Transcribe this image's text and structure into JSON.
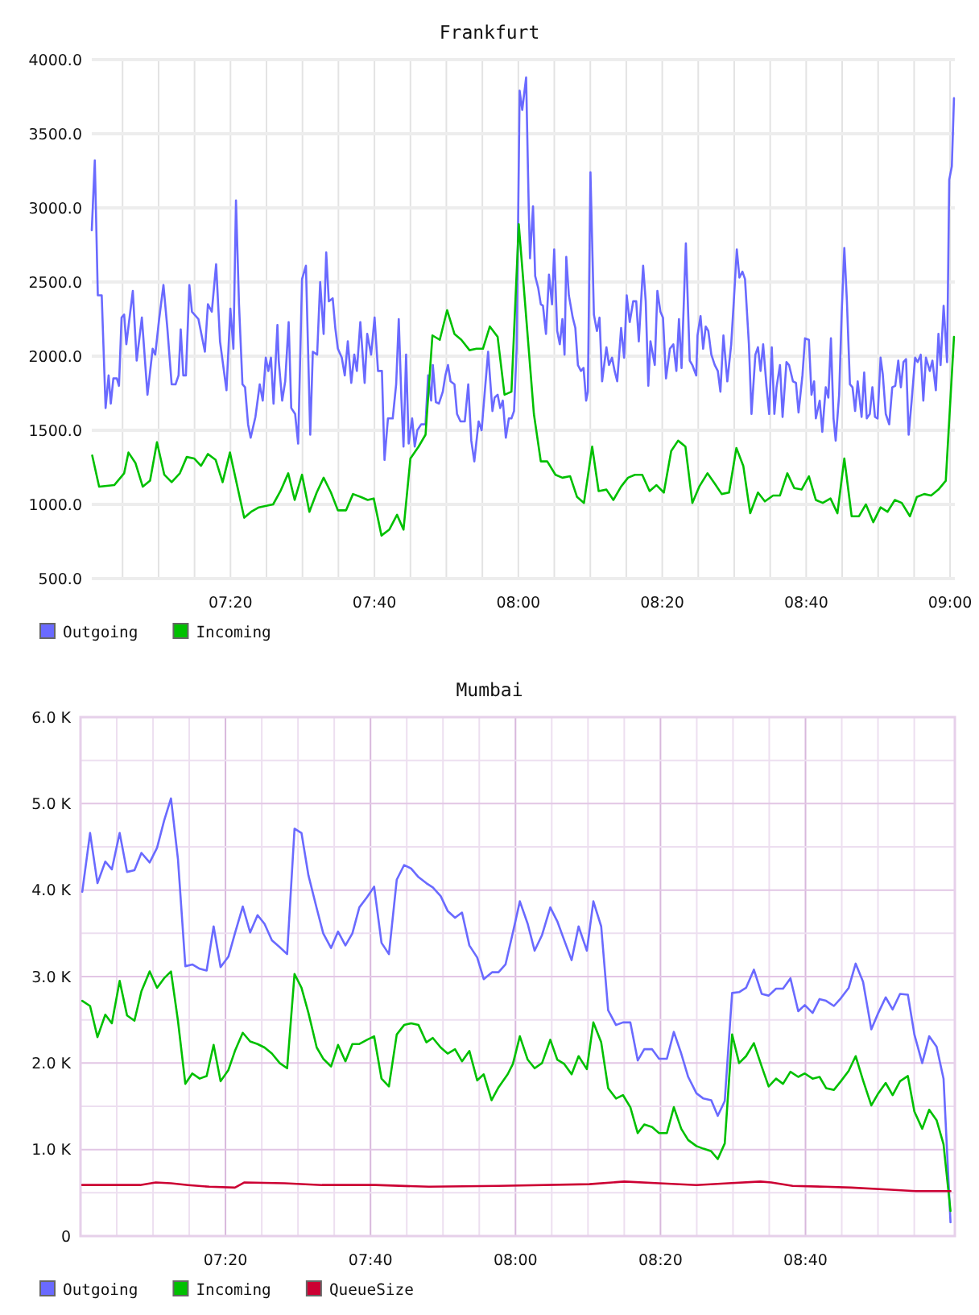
{
  "chart_data": [
    {
      "type": "line",
      "title": "Frankfurt",
      "xlim": [
        7.012,
        9.011
      ],
      "ylim": [
        500,
        4000
      ],
      "xticks": [
        {
          "value": 7.0833,
          "label": null
        },
        {
          "value": 7.1667,
          "label": null
        },
        {
          "value": 7.25,
          "label": null
        },
        {
          "value": 7.3333,
          "label": "07:20"
        },
        {
          "value": 7.4167,
          "label": null
        },
        {
          "value": 7.5,
          "label": null
        },
        {
          "value": 7.5833,
          "label": null
        },
        {
          "value": 7.6667,
          "label": "07:40"
        },
        {
          "value": 7.75,
          "label": null
        },
        {
          "value": 7.8333,
          "label": null
        },
        {
          "value": 7.9167,
          "label": null
        },
        {
          "value": 8,
          "label": "08:00"
        },
        {
          "value": 8.0833,
          "label": null
        },
        {
          "value": 8.1667,
          "label": null
        },
        {
          "value": 8.25,
          "label": null
        },
        {
          "value": 8.3333,
          "label": "08:20"
        },
        {
          "value": 8.4167,
          "label": null
        },
        {
          "value": 8.5,
          "label": null
        },
        {
          "value": 8.5833,
          "label": null
        },
        {
          "value": 8.6667,
          "label": "08:40"
        },
        {
          "value": 8.75,
          "label": null
        },
        {
          "value": 8.8333,
          "label": null
        },
        {
          "value": 8.9167,
          "label": null
        },
        {
          "value": 9,
          "label": "09:00"
        }
      ],
      "yticks": [
        {
          "value": 500,
          "label": "500.0"
        },
        {
          "value": 1000,
          "label": "1000.0"
        },
        {
          "value": 1500,
          "label": "1500.0"
        },
        {
          "value": 2000,
          "label": "2000.0"
        },
        {
          "value": 2500,
          "label": "2500.0"
        },
        {
          "value": 3000,
          "label": "3000.0"
        },
        {
          "value": 3500,
          "label": "3500.0"
        },
        {
          "value": 4000,
          "label": "4000.0"
        }
      ],
      "grid": true,
      "legend": "bottom left",
      "series": [
        {
          "name": "Outgoing",
          "color": "#6a6aff",
          "x": [
            7.012,
            7.019,
            7.026,
            7.035,
            7.044,
            7.051,
            7.056,
            7.062,
            7.07,
            7.075,
            7.081,
            7.087,
            7.092,
            7.107,
            7.116,
            7.128,
            7.141,
            7.153,
            7.159,
            7.168,
            7.178,
            7.187,
            7.197,
            7.206,
            7.213,
            7.218,
            7.224,
            7.23,
            7.238,
            7.244,
            7.259,
            7.274,
            7.281,
            7.29,
            7.3,
            7.309,
            7.324,
            7.333,
            7.34,
            7.346,
            7.353,
            7.361,
            7.367,
            7.374,
            7.38,
            7.391,
            7.401,
            7.408,
            7.415,
            7.421,
            7.427,
            7.433,
            7.442,
            7.445,
            7.453,
            7.46,
            7.468,
            7.474,
            7.483,
            7.49,
            7.499,
            7.508,
            7.518,
            7.524,
            7.534,
            7.541,
            7.549,
            7.555,
            7.561,
            7.57,
            7.576,
            7.582,
            7.591,
            7.598,
            7.605,
            7.613,
            7.62,
            7.626,
            7.634,
            7.644,
            7.65,
            7.659,
            7.667,
            7.675,
            7.684,
            7.69,
            7.698,
            7.709,
            7.717,
            7.723,
            7.729,
            7.734,
            7.74,
            7.746,
            7.754,
            7.76,
            7.766,
            7.775,
            7.785,
            7.791,
            7.798,
            7.802,
            7.809,
            7.816,
            7.825,
            7.831,
            7.837,
            7.843,
            7.852,
            7.858,
            7.866,
            7.876,
            7.884,
            7.891,
            7.898,
            7.908,
            7.915,
            7.918,
            7.93,
            7.94,
            7.945,
            7.952,
            7.958,
            7.964,
            7.971,
            7.978,
            7.984,
            7.99,
            7.996,
            8.003,
            8.009,
            8.018,
            8.024,
            8.027,
            8.034,
            8.039,
            8.046,
            8.052,
            8.057,
            8.064,
            8.071,
            8.078,
            8.083,
            8.09,
            8.096,
            8.102,
            8.107,
            8.111,
            8.117,
            8.126,
            8.132,
            8.138,
            8.145,
            8.151,
            8.157,
            8.161,
            8.167,
            8.175,
            8.182,
            8.188,
            8.194,
            8.204,
            8.21,
            8.217,
            8.223,
            8.229,
            8.238,
            8.245,
            8.251,
            8.258,
            8.266,
            8.273,
            8.279,
            8.289,
            8.295,
            8.301,
            8.306,
            8.316,
            8.322,
            8.329,
            8.335,
            8.342,
            8.351,
            8.359,
            8.366,
            8.372,
            8.378,
            8.388,
            8.397,
            8.403,
            8.412,
            8.415,
            8.422,
            8.428,
            8.434,
            8.44,
            8.447,
            8.455,
            8.462,
            8.468,
            8.475,
            8.484,
            8.493,
            8.499,
            8.506,
            8.512,
            8.519,
            8.525,
            8.534,
            8.54,
            8.549,
            8.555,
            8.561,
            8.567,
            8.575,
            8.581,
            8.587,
            8.593,
            8.598,
            8.606,
            8.612,
            8.621,
            8.627,
            8.636,
            8.643,
            8.649,
            8.658,
            8.664,
            8.673,
            8.679,
            8.685,
            8.689,
            8.698,
            8.704,
            8.712,
            8.718,
            8.724,
            8.73,
            8.735,
            8.743,
            8.749,
            8.755,
            8.761,
            8.768,
            8.774,
            8.78,
            8.786,
            8.795,
            8.801,
            8.807,
            8.814,
            8.82,
            8.826,
            8.832,
            8.839,
            8.844,
            8.851,
            8.859,
            8.866,
            8.873,
            8.88,
            8.886,
            8.892,
            8.898,
            8.904,
            8.911,
            8.919,
            8.925,
            8.932,
            8.938,
            8.944,
            8.953,
            8.959,
            8.967,
            8.973,
            8.978,
            8.985,
            8.993,
            8.998,
            9.004,
            9.009
          ],
          "values": [
            2850,
            3320,
            2410,
            2410,
            1650,
            1870,
            1680,
            1850,
            1850,
            1800,
            2260,
            2280,
            2080,
            2440,
            1970,
            2260,
            1740,
            2050,
            2010,
            2250,
            2480,
            2190,
            1810,
            1810,
            1870,
            2180,
            1870,
            1870,
            2480,
            2300,
            2250,
            2030,
            2350,
            2300,
            2620,
            2100,
            1770,
            2320,
            2050,
            3050,
            2350,
            1810,
            1790,
            1540,
            1450,
            1590,
            1810,
            1700,
            1990,
            1900,
            1990,
            1680,
            2210,
            1970,
            1700,
            1830,
            2230,
            1650,
            1610,
            1410,
            2520,
            2610,
            1470,
            2030,
            2010,
            2500,
            2150,
            2700,
            2370,
            2390,
            2190,
            2050,
            1990,
            1870,
            2100,
            1820,
            2010,
            1900,
            2230,
            1820,
            2150,
            2010,
            2260,
            1900,
            1900,
            1300,
            1580,
            1580,
            1810,
            2250,
            1720,
            1390,
            2010,
            1410,
            1580,
            1390,
            1500,
            1540,
            1540,
            1870,
            1700,
            1940,
            1690,
            1680,
            1760,
            1870,
            1940,
            1830,
            1810,
            1610,
            1560,
            1560,
            1810,
            1430,
            1290,
            1560,
            1500,
            1610,
            2030,
            1630,
            1720,
            1740,
            1650,
            1700,
            1450,
            1580,
            1580,
            1630,
            2050,
            3790,
            3660,
            3880,
            3010,
            2660,
            3010,
            2540,
            2460,
            2350,
            2340,
            2150,
            2550,
            2350,
            2720,
            2170,
            2080,
            2250,
            2010,
            2670,
            2410,
            2260,
            2190,
            1940,
            1900,
            1920,
            1700,
            1760,
            3240,
            2280,
            2170,
            2260,
            1830,
            2060,
            1940,
            1990,
            1900,
            1830,
            2190,
            1990,
            2410,
            2230,
            2370,
            2370,
            2100,
            2610,
            2370,
            1800,
            2100,
            1940,
            2440,
            2300,
            2260,
            1850,
            2050,
            2080,
            1900,
            2250,
            1920,
            2760,
            1970,
            1940,
            1870,
            2140,
            2270,
            2050,
            2200,
            2170,
            2010,
            1940,
            1900,
            1760,
            2140,
            1830,
            2080,
            2370,
            2720,
            2530,
            2570,
            2520,
            2080,
            1610,
            2010,
            2060,
            1900,
            2080,
            1790,
            1610,
            2060,
            1610,
            1790,
            1940,
            1590,
            1960,
            1940,
            1830,
            1820,
            1620,
            1870,
            2120,
            2110,
            1740,
            1830,
            1580,
            1700,
            1490,
            1790,
            1720,
            2120,
            1580,
            1430,
            1740,
            2300,
            2730,
            2370,
            1810,
            1790,
            1630,
            1830,
            1590,
            1890,
            1580,
            1610,
            1790,
            1590,
            1580,
            1990,
            1880,
            1610,
            1540,
            1790,
            1800,
            1970,
            1790,
            1960,
            1980,
            1470,
            1700,
            1990,
            1960,
            2010,
            1700,
            1990,
            1900,
            1970,
            1770,
            2150,
            1940,
            2340,
            1960,
            3190,
            3280,
            3740
          ]
        },
        {
          "name": "Incoming",
          "color": "#00c000",
          "x": [
            7.013,
            7.029,
            7.064,
            7.087,
            7.097,
            7.113,
            7.13,
            7.147,
            7.163,
            7.18,
            7.197,
            7.216,
            7.232,
            7.249,
            7.265,
            7.281,
            7.299,
            7.315,
            7.332,
            7.365,
            7.381,
            7.399,
            7.416,
            7.432,
            7.449,
            7.467,
            7.482,
            7.499,
            7.516,
            7.533,
            7.549,
            7.566,
            7.582,
            7.601,
            7.617,
            7.635,
            7.651,
            7.665,
            7.683,
            7.701,
            7.719,
            7.734,
            7.75,
            7.769,
            7.785,
            7.801,
            7.818,
            7.835,
            7.852,
            7.868,
            7.887,
            7.903,
            7.918,
            7.934,
            7.952,
            7.968,
            7.984,
            8.001,
            8.036,
            8.052,
            8.067,
            8.086,
            8.102,
            8.12,
            8.136,
            8.152,
            8.171,
            8.186,
            8.204,
            8.22,
            8.238,
            8.254,
            8.27,
            8.287,
            8.304,
            8.32,
            8.337,
            8.354,
            8.37,
            8.387,
            8.403,
            8.419,
            8.438,
            8.455,
            8.471,
            8.488,
            8.505,
            8.521,
            8.537,
            8.555,
            8.571,
            8.59,
            8.606,
            8.623,
            8.639,
            8.656,
            8.673,
            8.689,
            8.705,
            8.723,
            8.739,
            8.755,
            8.772,
            8.789,
            8.805,
            8.822,
            8.839,
            8.855,
            8.872,
            8.888,
            8.907,
            8.923,
            8.94,
            8.956,
            8.973,
            8.99,
            9.009
          ],
          "values": [
            1330,
            1120,
            1130,
            1210,
            1350,
            1280,
            1120,
            1160,
            1420,
            1200,
            1150,
            1210,
            1320,
            1310,
            1260,
            1340,
            1300,
            1150,
            1350,
            910,
            950,
            980,
            990,
            1000,
            1090,
            1210,
            1030,
            1200,
            950,
            1080,
            1180,
            1080,
            960,
            960,
            1070,
            1050,
            1030,
            1040,
            790,
            830,
            930,
            830,
            1310,
            1390,
            1470,
            2140,
            2110,
            2310,
            2150,
            2110,
            2040,
            2050,
            2050,
            2200,
            2130,
            1740,
            1760,
            2890,
            1610,
            1290,
            1290,
            1200,
            1180,
            1190,
            1050,
            1010,
            1390,
            1090,
            1100,
            1030,
            1120,
            1180,
            1200,
            1200,
            1090,
            1130,
            1080,
            1360,
            1430,
            1390,
            1010,
            1120,
            1210,
            1140,
            1070,
            1080,
            1380,
            1260,
            940,
            1080,
            1020,
            1060,
            1060,
            1210,
            1110,
            1100,
            1190,
            1030,
            1010,
            1040,
            940,
            1310,
            920,
            920,
            1000,
            880,
            980,
            950,
            1030,
            1010,
            920,
            1050,
            1070,
            1060,
            1100,
            1160,
            2130
          ]
        }
      ]
    },
    {
      "type": "line",
      "title": "Mumbai",
      "xlim": [
        7,
        9.01
      ],
      "ylim": [
        0,
        6000
      ],
      "xticks": [
        {
          "value": 7.0833,
          "label": null
        },
        {
          "value": 7.1667,
          "label": null
        },
        {
          "value": 7.25,
          "label": null
        },
        {
          "value": 7.3333,
          "label": "07:20"
        },
        {
          "value": 7.4167,
          "label": null
        },
        {
          "value": 7.5,
          "label": null
        },
        {
          "value": 7.5833,
          "label": null
        },
        {
          "value": 7.6667,
          "label": "07:40"
        },
        {
          "value": 7.75,
          "label": null
        },
        {
          "value": 7.8333,
          "label": null
        },
        {
          "value": 7.9167,
          "label": null
        },
        {
          "value": 8,
          "label": "08:00"
        },
        {
          "value": 8.0833,
          "label": null
        },
        {
          "value": 8.1667,
          "label": null
        },
        {
          "value": 8.25,
          "label": null
        },
        {
          "value": 8.3333,
          "label": "08:20"
        },
        {
          "value": 8.4167,
          "label": null
        },
        {
          "value": 8.5,
          "label": null
        },
        {
          "value": 8.5833,
          "label": null
        },
        {
          "value": 8.6667,
          "label": "08:40"
        },
        {
          "value": 8.75,
          "label": null
        },
        {
          "value": 8.8333,
          "label": null
        },
        {
          "value": 8.9167,
          "label": null
        }
      ],
      "yticks": [
        0,
        {
          "value": 500,
          "label": null
        },
        {
          "value": 1000,
          "label": "1.0 K"
        },
        {
          "value": 1500,
          "label": null
        },
        {
          "value": 2000,
          "label": "2.0 K"
        },
        {
          "value": 2500,
          "label": null
        },
        {
          "value": 3000,
          "label": "3.0 K"
        },
        {
          "value": 3500,
          "label": null
        },
        {
          "value": 4000,
          "label": "4.0 K"
        },
        {
          "value": 4500,
          "label": null
        },
        {
          "value": 5000,
          "label": "5.0 K"
        },
        {
          "value": 5500,
          "label": null
        },
        {
          "value": 6000,
          "label": "6.0 K"
        }
      ],
      "grid": true,
      "legend": "bottom left",
      "series": [
        {
          "name": "Outgoing",
          "color": "#6a6aff",
          "x": [
            7.004,
            7.022,
            7.039,
            7.057,
            7.072,
            7.09,
            7.107,
            7.124,
            7.14,
            7.159,
            7.176,
            7.192,
            7.208,
            7.224,
            7.241,
            7.257,
            7.274,
            7.29,
            7.306,
            7.322,
            7.34,
            7.355,
            7.373,
            7.39,
            7.407,
            7.423,
            7.44,
            7.458,
            7.475,
            7.492,
            7.508,
            7.524,
            7.543,
            7.558,
            7.576,
            7.592,
            7.609,
            7.625,
            7.641,
            7.659,
            7.675,
            7.692,
            7.709,
            7.727,
            7.744,
            7.76,
            7.777,
            7.795,
            7.81,
            7.828,
            7.844,
            7.861,
            7.877,
            7.894,
            7.912,
            7.927,
            7.946,
            7.961,
            7.977,
            7.994,
            8.01,
            8.028,
            8.044,
            8.061,
            8.08,
            8.096,
            8.112,
            8.129,
            8.145,
            8.164,
            8.179,
            8.197,
            8.213,
            8.231,
            8.247,
            8.264,
            8.281,
            8.296,
            8.314,
            8.33,
            8.348,
            8.364,
            8.381,
            8.397,
            8.416,
            8.432,
            8.45,
            8.465,
            8.481,
            8.498,
            8.514,
            8.53,
            8.548,
            8.566,
            8.582,
            8.599,
            8.615,
            8.632,
            8.65,
            8.665,
            8.683,
            8.699,
            8.714,
            8.732,
            8.748,
            8.766,
            8.782,
            8.799,
            8.818,
            8.834,
            8.851,
            8.867,
            8.884,
            8.902,
            8.917,
            8.935,
            8.951,
            8.968,
            8.984,
            9.0
          ],
          "values": [
            3980,
            4660,
            4080,
            4330,
            4240,
            4660,
            4210,
            4230,
            4430,
            4320,
            4490,
            4800,
            5060,
            4360,
            3120,
            3140,
            3090,
            3070,
            3580,
            3110,
            3230,
            3500,
            3810,
            3510,
            3710,
            3610,
            3420,
            3340,
            3260,
            4710,
            4660,
            4170,
            3790,
            3500,
            3330,
            3520,
            3360,
            3500,
            3800,
            3920,
            4040,
            3390,
            3260,
            4120,
            4290,
            4250,
            4150,
            4080,
            4030,
            3930,
            3760,
            3680,
            3740,
            3360,
            3220,
            2970,
            3050,
            3050,
            3140,
            3510,
            3870,
            3610,
            3300,
            3480,
            3800,
            3640,
            3420,
            3190,
            3580,
            3300,
            3870,
            3580,
            2610,
            2440,
            2470,
            2470,
            2030,
            2160,
            2160,
            2050,
            2050,
            2360,
            2110,
            1840,
            1650,
            1590,
            1570,
            1390,
            1560,
            2810,
            2820,
            2870,
            3080,
            2800,
            2780,
            2860,
            2860,
            2980,
            2600,
            2670,
            2580,
            2740,
            2720,
            2660,
            2750,
            2870,
            3150,
            2940,
            2390,
            2580,
            2760,
            2620,
            2800,
            2790,
            2330,
            2000,
            2310,
            2190,
            1820,
            160
          ]
        },
        {
          "name": "Incoming",
          "color": "#00c000",
          "x": [
            7.004,
            7.022,
            7.039,
            7.057,
            7.072,
            7.09,
            7.107,
            7.124,
            7.14,
            7.159,
            7.176,
            7.192,
            7.208,
            7.224,
            7.241,
            7.257,
            7.274,
            7.29,
            7.306,
            7.322,
            7.34,
            7.355,
            7.373,
            7.39,
            7.407,
            7.423,
            7.44,
            7.458,
            7.475,
            7.492,
            7.508,
            7.524,
            7.543,
            7.558,
            7.576,
            7.592,
            7.609,
            7.625,
            7.641,
            7.659,
            7.675,
            7.692,
            7.709,
            7.727,
            7.744,
            7.76,
            7.777,
            7.795,
            7.81,
            7.828,
            7.844,
            7.861,
            7.877,
            7.894,
            7.912,
            7.927,
            7.945,
            7.961,
            7.982,
            7.994,
            8.01,
            8.028,
            8.044,
            8.061,
            8.08,
            8.096,
            8.112,
            8.129,
            8.145,
            8.164,
            8.179,
            8.197,
            8.213,
            8.231,
            8.247,
            8.264,
            8.281,
            8.296,
            8.314,
            8.33,
            8.348,
            8.364,
            8.381,
            8.397,
            8.416,
            8.432,
            8.45,
            8.465,
            8.481,
            8.498,
            8.514,
            8.53,
            8.548,
            8.566,
            8.582,
            8.599,
            8.615,
            8.632,
            8.65,
            8.665,
            8.683,
            8.699,
            8.714,
            8.732,
            8.748,
            8.766,
            8.782,
            8.799,
            8.818,
            8.834,
            8.851,
            8.867,
            8.884,
            8.902,
            8.917,
            8.935,
            8.951,
            8.968,
            8.984,
            9.0
          ],
          "values": [
            2720,
            2660,
            2300,
            2560,
            2460,
            2950,
            2550,
            2490,
            2830,
            3060,
            2870,
            2980,
            3060,
            2490,
            1760,
            1880,
            1820,
            1850,
            2210,
            1790,
            1920,
            2140,
            2350,
            2250,
            2220,
            2180,
            2110,
            2000,
            1940,
            3030,
            2870,
            2580,
            2180,
            2050,
            1960,
            2210,
            2020,
            2220,
            2220,
            2270,
            2310,
            1820,
            1730,
            2330,
            2440,
            2460,
            2440,
            2240,
            2290,
            2180,
            2110,
            2160,
            2020,
            2140,
            1800,
            1870,
            1570,
            1720,
            1870,
            1990,
            2310,
            2040,
            1940,
            2000,
            2270,
            2040,
            1990,
            1870,
            2080,
            1930,
            2470,
            2240,
            1710,
            1590,
            1630,
            1490,
            1190,
            1290,
            1260,
            1190,
            1190,
            1490,
            1240,
            1110,
            1040,
            1010,
            980,
            890,
            1070,
            2330,
            2000,
            2080,
            2230,
            1960,
            1730,
            1820,
            1760,
            1900,
            1840,
            1880,
            1820,
            1840,
            1710,
            1690,
            1790,
            1910,
            2080,
            1800,
            1510,
            1650,
            1770,
            1630,
            1790,
            1850,
            1440,
            1240,
            1460,
            1340,
            1060,
            290
          ]
        },
        {
          "name": "QueueSize",
          "color": "#cc0033",
          "x": [
            7.004,
            7.137,
            7.173,
            7.208,
            7.247,
            7.296,
            7.355,
            7.377,
            7.469,
            7.555,
            7.678,
            7.801,
            7.961,
            8.17,
            8.25,
            8.33,
            8.416,
            8.489,
            8.563,
            8.588,
            8.637,
            8.711,
            8.772,
            8.846,
            8.92,
            9.0
          ],
          "values": [
            590,
            590,
            620,
            610,
            590,
            570,
            560,
            620,
            610,
            590,
            590,
            570,
            580,
            600,
            630,
            610,
            590,
            610,
            630,
            620,
            580,
            570,
            560,
            540,
            520,
            520
          ]
        }
      ]
    }
  ]
}
